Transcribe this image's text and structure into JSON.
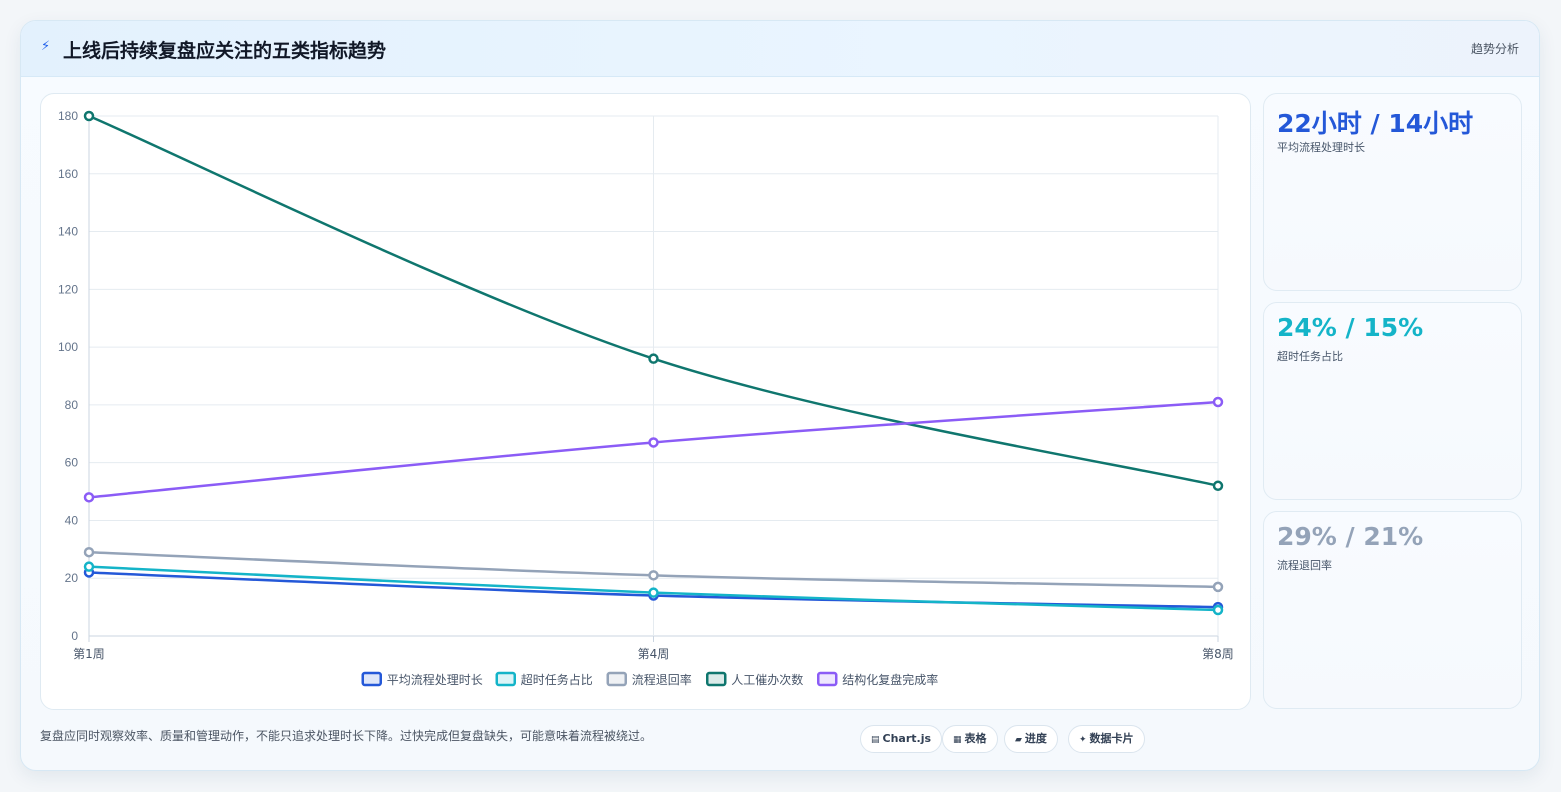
{
  "header": {
    "icon": "lightning-icon",
    "title": "上线后持续复盘应关注的五类指标趋势",
    "tag": "趋势分析"
  },
  "stats": [
    {
      "value": "22小时 / 14小时",
      "label": "平均流程处理时长",
      "color": "#2458d8"
    },
    {
      "value": "24% / 15%",
      "label": "超时任务占比",
      "color": "#14b4c8"
    },
    {
      "value": "29% / 21%",
      "label": "流程退回率",
      "color": "#94a3b8"
    }
  ],
  "footnote": "复盘应同时观察效率、质量和管理动作，不能只追求处理时长下降。过快完成但复盘缺失，可能意味着流程被绕过。",
  "pills": [
    {
      "icon": "chart-icon",
      "glyph": "▤",
      "label": "Chart.js"
    },
    {
      "icon": "table-icon",
      "glyph": "▦",
      "label": "表格"
    },
    {
      "icon": "progress-icon",
      "glyph": "▰",
      "label": "进度"
    },
    {
      "icon": "sparkle-icon",
      "glyph": "✦",
      "label": "数据卡片"
    }
  ],
  "chart_data": {
    "type": "line",
    "categories": [
      "第1周",
      "第4周",
      "第8周"
    ],
    "ylim": [
      0,
      180
    ],
    "yticks": [
      0,
      20,
      40,
      60,
      80,
      100,
      120,
      140,
      160,
      180
    ],
    "grid": true,
    "legend_position": "bottom",
    "series": [
      {
        "name": "平均流程处理时长",
        "values": [
          22,
          14,
          10
        ],
        "color": "#2458d8"
      },
      {
        "name": "超时任务占比",
        "values": [
          24,
          15,
          9
        ],
        "color": "#14b4c8"
      },
      {
        "name": "流程退回率",
        "values": [
          29,
          21,
          17
        ],
        "color": "#94a3b8"
      },
      {
        "name": "人工催办次数",
        "values": [
          180,
          96,
          52
        ],
        "color": "#0f766e"
      },
      {
        "name": "结构化复盘完成率",
        "values": [
          48,
          67,
          81
        ],
        "color": "#8b5cf6"
      }
    ]
  }
}
